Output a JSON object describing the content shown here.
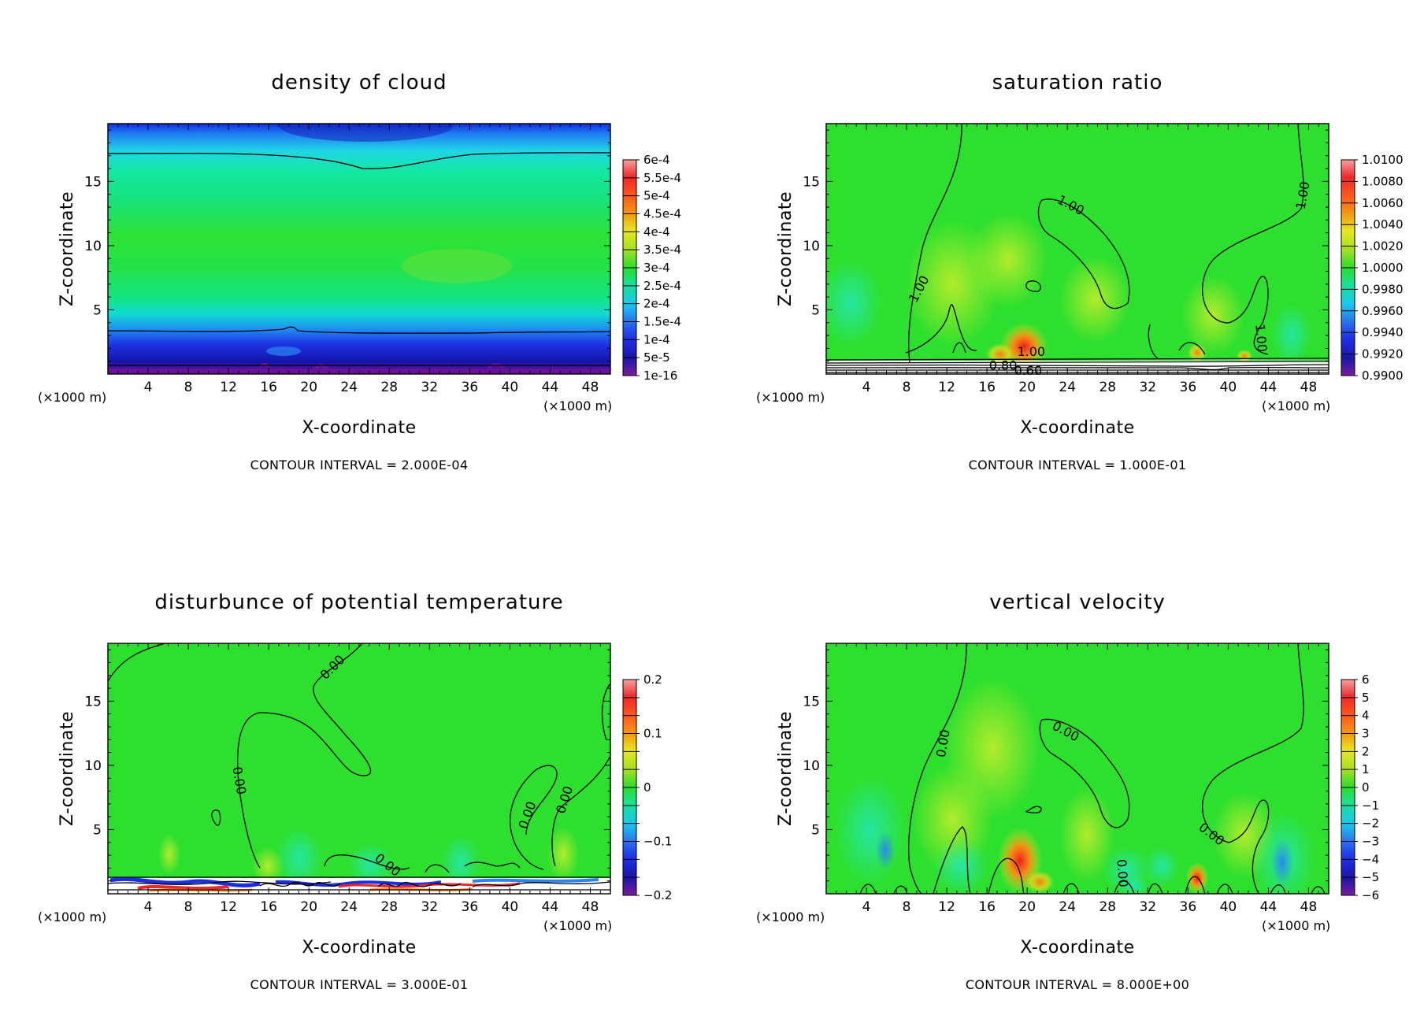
{
  "chart_data": [
    {
      "type": "heatmap",
      "title": "density of cloud",
      "xlabel": "X-coordinate",
      "ylabel": "Z-coordinate",
      "x_unit": "(×1000 m)",
      "xlim": [
        0,
        50
      ],
      "ylim": [
        0,
        19.5
      ],
      "xticks": [
        "4",
        "8",
        "12",
        "16",
        "20",
        "24",
        "28",
        "32",
        "36",
        "40",
        "44",
        "48"
      ],
      "yticks": [
        "5",
        "10",
        "15"
      ],
      "colorbar": [
        "6e-4",
        "5.5e-4",
        "5e-4",
        "4.5e-4",
        "4e-4",
        "3.5e-4",
        "3e-4",
        "2.5e-4",
        "2e-4",
        "1.5e-4",
        "1e-4",
        "5e-5",
        "1e-16"
      ],
      "contour_interval": "CONTOUR INTERVAL = 2.000E-04",
      "contour_labels": []
    },
    {
      "type": "heatmap",
      "title": "saturation ratio",
      "xlabel": "X-coordinate",
      "ylabel": "Z-coordinate",
      "x_unit": "(×1000 m)",
      "xlim": [
        0,
        50
      ],
      "ylim": [
        0,
        19.5
      ],
      "xticks": [
        "4",
        "8",
        "12",
        "16",
        "20",
        "24",
        "28",
        "32",
        "36",
        "40",
        "44",
        "48"
      ],
      "yticks": [
        "5",
        "10",
        "15"
      ],
      "colorbar": [
        "1.0100",
        "1.0080",
        "1.0060",
        "1.0040",
        "1.0020",
        "1.0000",
        "0.9980",
        "0.9960",
        "0.9940",
        "0.9920",
        "0.9900"
      ],
      "contour_interval": "CONTOUR INTERVAL = 1.000E-01",
      "contour_labels": [
        {
          "text": "1.00",
          "x": 9.3,
          "z": 6.6,
          "rot": -62
        },
        {
          "text": "1.00",
          "x": 24.3,
          "z": 13.1,
          "rot": 28
        },
        {
          "text": "1.00",
          "x": 47.5,
          "z": 13.9,
          "rot": -80
        },
        {
          "text": "1.00",
          "x": 43.2,
          "z": 2.8,
          "rot": 85
        },
        {
          "text": "1.00",
          "x": 20.4,
          "z": 1.7,
          "rot": 0
        },
        {
          "text": "0.80",
          "x": 17.6,
          "z": 0.6,
          "rot": 0
        },
        {
          "text": "0.60",
          "x": 20.1,
          "z": 0.2,
          "rot": 0
        }
      ]
    },
    {
      "type": "heatmap",
      "title": "disturbunce of potential temperature",
      "xlabel": "X-coordinate",
      "ylabel": "Z-coordinate",
      "x_unit": "(×1000 m)",
      "xlim": [
        0,
        50
      ],
      "ylim": [
        0,
        19.5
      ],
      "xticks": [
        "4",
        "8",
        "12",
        "16",
        "20",
        "24",
        "28",
        "32",
        "36",
        "40",
        "44",
        "48"
      ],
      "yticks": [
        "5",
        "10",
        "15"
      ],
      "colorbar": [
        "0.2",
        "",
        "",
        "0.1",
        "",
        "",
        "0",
        "",
        "",
        "−0.1",
        "",
        "",
        "−0.2"
      ],
      "contour_interval": "CONTOUR INTERVAL = 3.000E-01",
      "contour_labels": [
        {
          "text": "0.00",
          "x": 22.4,
          "z": 17.6,
          "rot": -45
        },
        {
          "text": "0.00",
          "x": 13.0,
          "z": 8.8,
          "rot": 80
        },
        {
          "text": "0.00",
          "x": 41.8,
          "z": 6.1,
          "rot": -70
        },
        {
          "text": "0.00",
          "x": 45.5,
          "z": 7.3,
          "rot": -72
        },
        {
          "text": "0.00",
          "x": 27.8,
          "z": 2.2,
          "rot": 38
        }
      ]
    },
    {
      "type": "heatmap",
      "title": "vertical velocity",
      "xlabel": "X-coordinate",
      "ylabel": "Z-coordinate",
      "x_unit": "(×1000 m)",
      "xlim": [
        0,
        50
      ],
      "ylim": [
        0,
        19.5
      ],
      "xticks": [
        "4",
        "8",
        "12",
        "16",
        "20",
        "24",
        "28",
        "32",
        "36",
        "40",
        "44",
        "48"
      ],
      "yticks": [
        "5",
        "10",
        "15"
      ],
      "colorbar": [
        "6",
        "5",
        "4",
        "3",
        "2",
        "1",
        "0",
        "−1",
        "−2",
        "−3",
        "−4",
        "−5",
        "−6"
      ],
      "contour_interval": "CONTOUR INTERVAL = 8.000E+00",
      "contour_labels": [
        {
          "text": "0.00",
          "x": 11.7,
          "z": 11.7,
          "rot": -80
        },
        {
          "text": "0.00",
          "x": 23.8,
          "z": 12.6,
          "rot": 28
        },
        {
          "text": "0.00",
          "x": 38.3,
          "z": 4.6,
          "rot": 38
        },
        {
          "text": "0.00",
          "x": 29.4,
          "z": 1.6,
          "rot": 86
        }
      ]
    }
  ]
}
